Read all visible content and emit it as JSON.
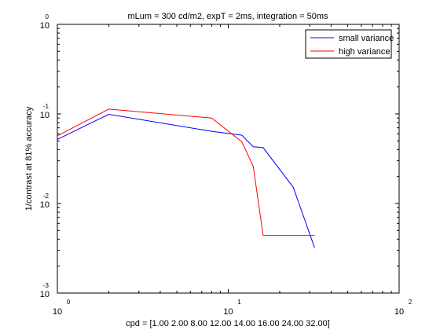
{
  "chart_data": {
    "type": "line",
    "title": "mLum = 300 cd/m2, expT = 2ms, integration = 50ms",
    "xlabel": "cpd = [1.00 2.00 8.00 12.00 14.00 16.00 24.00 32.00]",
    "ylabel": "1/contrast at 81% accuracy",
    "xscale": "log",
    "yscale": "log",
    "xlim": [
      1,
      100
    ],
    "ylim": [
      0.001,
      1
    ],
    "grid": false,
    "legend_position": "top-right",
    "x_ticks": [
      {
        "value": 1,
        "base": "10",
        "exp": "0"
      },
      {
        "value": 10,
        "base": "10",
        "exp": "1"
      },
      {
        "value": 100,
        "base": "10",
        "exp": "2"
      }
    ],
    "y_ticks": [
      {
        "value": 1,
        "base": "10",
        "exp": "0"
      },
      {
        "value": 0.1,
        "base": "10",
        "exp": "-1"
      },
      {
        "value": 0.01,
        "base": "10",
        "exp": "-2"
      },
      {
        "value": 0.001,
        "base": "10",
        "exp": "-3"
      }
    ],
    "x": [
      1,
      2,
      8,
      12,
      14,
      16,
      24,
      32
    ],
    "series": [
      {
        "name": "small variance",
        "color": "#0000ff",
        "values": [
          0.052,
          0.099,
          0.064,
          0.058,
          0.043,
          0.042,
          0.0152,
          0.0032
        ]
      },
      {
        "name": "high variance",
        "color": "#ff0000",
        "values": [
          0.057,
          0.113,
          0.09,
          0.049,
          0.026,
          0.0044,
          0.0044,
          0.0044
        ]
      }
    ]
  }
}
